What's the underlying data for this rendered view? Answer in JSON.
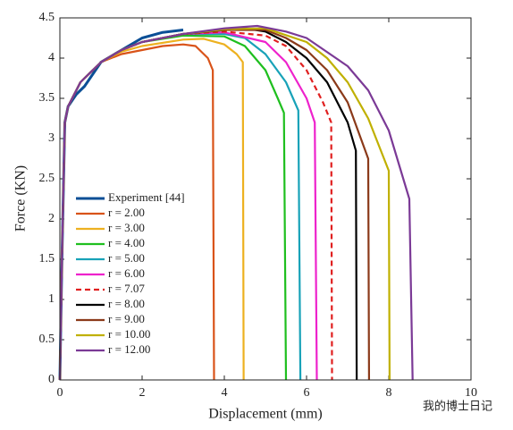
{
  "chart_data": {
    "type": "line",
    "xlabel": "Displacement (mm)",
    "ylabel": "Force (KN)",
    "xlim": [
      0,
      10
    ],
    "ylim": [
      0,
      4.5
    ],
    "xticks": [
      0,
      2,
      4,
      6,
      8,
      10
    ],
    "yticks": [
      0,
      0.5,
      1,
      1.5,
      2,
      2.5,
      3,
      3.5,
      4,
      4.5
    ],
    "legend": "lower left",
    "watermark": "我的博士日记",
    "series": [
      {
        "name": "Experiment [44]",
        "color": "#0b4f96",
        "width": 3,
        "x": [
          0,
          0.05,
          0.12,
          0.2,
          0.4,
          0.6,
          1,
          1.5,
          2,
          2.5,
          3
        ],
        "values": [
          0,
          1.5,
          3.2,
          3.4,
          3.55,
          3.65,
          3.95,
          4.1,
          4.25,
          4.32,
          4.35
        ]
      },
      {
        "name": "r = 2.00",
        "color": "#d95319",
        "x": [
          0,
          0.05,
          0.12,
          0.2,
          0.5,
          1,
          1.5,
          2,
          2.5,
          3,
          3.3,
          3.6,
          3.72,
          3.75
        ],
        "values": [
          0,
          1.5,
          3.2,
          3.4,
          3.7,
          3.95,
          4.05,
          4.1,
          4.15,
          4.17,
          4.15,
          4.0,
          3.85,
          0
        ]
      },
      {
        "name": "r = 3.00",
        "color": "#edb120",
        "x": [
          0,
          0.05,
          0.12,
          0.2,
          0.5,
          1,
          1.5,
          2,
          3,
          3.5,
          4,
          4.3,
          4.45,
          4.47
        ],
        "values": [
          0,
          1.5,
          3.2,
          3.4,
          3.7,
          3.95,
          4.08,
          4.15,
          4.23,
          4.24,
          4.17,
          4.05,
          3.95,
          0
        ]
      },
      {
        "name": "r = 4.00",
        "color": "#1fbf1f",
        "x": [
          0,
          0.05,
          0.12,
          0.2,
          0.5,
          1,
          1.5,
          2,
          3,
          4,
          4.5,
          5,
          5.3,
          5.45,
          5.5
        ],
        "values": [
          0,
          1.5,
          3.2,
          3.4,
          3.7,
          3.95,
          4.1,
          4.2,
          4.28,
          4.27,
          4.15,
          3.85,
          3.5,
          3.32,
          0
        ]
      },
      {
        "name": "r = 5.00",
        "color": "#18a2b8",
        "x": [
          0,
          0.05,
          0.12,
          0.2,
          0.5,
          1,
          1.5,
          2,
          3,
          4,
          4.5,
          5,
          5.5,
          5.8,
          5.85
        ],
        "values": [
          0,
          1.5,
          3.2,
          3.4,
          3.7,
          3.95,
          4.1,
          4.2,
          4.3,
          4.3,
          4.25,
          4.05,
          3.7,
          3.35,
          0
        ]
      },
      {
        "name": "r = 6.00",
        "color": "#ee22cc",
        "x": [
          0,
          0.05,
          0.12,
          0.2,
          0.5,
          1,
          1.5,
          2,
          3,
          4,
          5,
          5.5,
          6,
          6.2,
          6.25
        ],
        "values": [
          0,
          1.5,
          3.2,
          3.4,
          3.7,
          3.95,
          4.1,
          4.2,
          4.3,
          4.32,
          4.2,
          3.95,
          3.5,
          3.2,
          0
        ]
      },
      {
        "name": "r = 7.07",
        "color": "#e02020",
        "dashed": true,
        "x": [
          0,
          0.05,
          0.12,
          0.2,
          0.5,
          1,
          1.5,
          2,
          3,
          4,
          5,
          5.5,
          6,
          6.4,
          6.6,
          6.62
        ],
        "values": [
          0,
          1.5,
          3.2,
          3.4,
          3.7,
          3.95,
          4.1,
          4.2,
          4.3,
          4.33,
          4.28,
          4.15,
          3.85,
          3.45,
          3.2,
          0
        ]
      },
      {
        "name": "r = 8.00",
        "color": "#000000",
        "x": [
          0,
          0.05,
          0.12,
          0.2,
          0.5,
          1,
          1.5,
          2,
          3,
          4,
          4.5,
          5,
          5.5,
          6,
          6.5,
          7,
          7.2,
          7.22
        ],
        "values": [
          0,
          1.5,
          3.2,
          3.4,
          3.7,
          3.95,
          4.1,
          4.2,
          4.3,
          4.35,
          4.37,
          4.33,
          4.2,
          4.0,
          3.7,
          3.2,
          2.85,
          0
        ]
      },
      {
        "name": "r = 9.00",
        "color": "#8b3a1a",
        "x": [
          0,
          0.05,
          0.12,
          0.2,
          0.5,
          1,
          1.5,
          2,
          3,
          4,
          5,
          5.5,
          6,
          6.5,
          7,
          7.5,
          7.52
        ],
        "values": [
          0,
          1.5,
          3.2,
          3.4,
          3.7,
          3.95,
          4.1,
          4.2,
          4.3,
          4.35,
          4.35,
          4.25,
          4.1,
          3.85,
          3.45,
          2.75,
          0
        ]
      },
      {
        "name": "r = 10.00",
        "color": "#c0b000",
        "x": [
          0,
          0.05,
          0.12,
          0.2,
          0.5,
          1,
          1.5,
          2,
          3,
          4,
          5,
          6,
          6.5,
          7,
          7.5,
          8,
          8.02
        ],
        "values": [
          0,
          1.5,
          3.2,
          3.4,
          3.7,
          3.95,
          4.1,
          4.2,
          4.3,
          4.36,
          4.37,
          4.2,
          4.0,
          3.7,
          3.25,
          2.6,
          0
        ]
      },
      {
        "name": "r = 12.00",
        "color": "#7b3a96",
        "x": [
          0,
          0.05,
          0.12,
          0.2,
          0.5,
          1,
          1.5,
          2,
          3,
          4,
          4.8,
          5.5,
          6,
          7,
          7.5,
          8,
          8.5,
          8.58
        ],
        "values": [
          0,
          1.5,
          3.2,
          3.4,
          3.7,
          3.95,
          4.1,
          4.2,
          4.3,
          4.37,
          4.4,
          4.33,
          4.25,
          3.9,
          3.6,
          3.1,
          2.25,
          0
        ]
      }
    ]
  }
}
